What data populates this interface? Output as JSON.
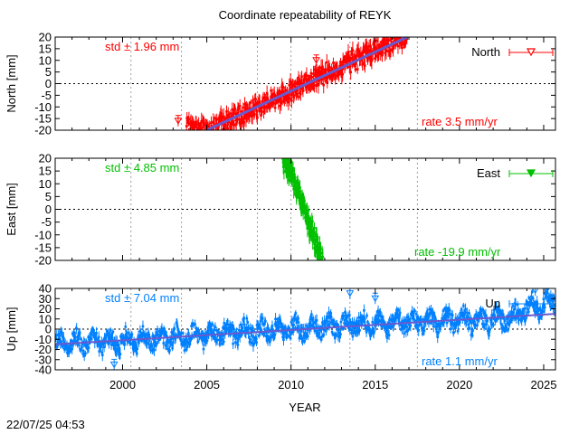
{
  "title": "Coordinate repeatability of REYK",
  "timestamp": "22/07/25 04:53",
  "colors": {
    "north": "#ff0000",
    "east": "#00c000",
    "up": "#0080ff",
    "trend": "#6a5acd",
    "grid": "#888888"
  },
  "chart_data": [
    {
      "type": "scatter",
      "component": "North",
      "ylabel": "North [mm]",
      "xlabel": "",
      "xlim": [
        1996,
        2025.7
      ],
      "ylim": [
        -20,
        20
      ],
      "yticks": [
        -20,
        -15,
        -10,
        -5,
        0,
        5,
        10,
        15,
        20
      ],
      "xticks": [
        2000,
        2005,
        2010,
        2015,
        2020,
        2025
      ],
      "xgrid_lines": [
        2000.5,
        2003.5,
        2008,
        2010,
        2013.5,
        2017.5
      ],
      "legend": "North",
      "legend_position": "top-right",
      "std_label": "std ± 1.96 mm",
      "rate_label": "rate  3.5 mm/yr",
      "data_start": 2003.8,
      "data_end": 2016.9,
      "series": [
        {
          "name": "North",
          "x": [
            2003.8,
            2005,
            2007,
            2009,
            2011,
            2013,
            2015,
            2016.9
          ],
          "y": [
            -19,
            -20,
            -13.5,
            -6.5,
            0.5,
            7.5,
            14.5,
            20
          ]
        }
      ],
      "outliers": [
        [
          2003.3,
          -16
        ],
        [
          2011.5,
          10
        ],
        [
          2016.1,
          17
        ]
      ],
      "trend": {
        "x": [
          2005,
          2016.9
        ],
        "y": [
          -20,
          20
        ]
      }
    },
    {
      "type": "scatter",
      "component": "East",
      "ylabel": "East [mm]",
      "xlabel": "",
      "xlim": [
        1996,
        2025.7
      ],
      "ylim": [
        -20,
        20
      ],
      "yticks": [
        -20,
        -15,
        -10,
        -5,
        0,
        5,
        10,
        15,
        20
      ],
      "xticks": [
        2000,
        2005,
        2010,
        2015,
        2020,
        2025
      ],
      "xgrid_lines": [
        2000.5,
        2003.5,
        2008,
        2010,
        2013.5,
        2017.5
      ],
      "legend": "East",
      "legend_position": "top-right",
      "std_label": "std ± 4.85 mm",
      "rate_label": "rate -19.9 mm/yr",
      "data_start": 2009.5,
      "data_end": 2011.9,
      "series": [
        {
          "name": "East",
          "x": [
            2009.5,
            2010,
            2010.5,
            2011,
            2011.5,
            2011.9
          ],
          "y": [
            20,
            14,
            6,
            -4,
            -13,
            -20
          ]
        }
      ],
      "outliers": [],
      "trend": null
    },
    {
      "type": "scatter",
      "component": "Up",
      "ylabel": "Up [mm]",
      "xlabel": "YEAR",
      "xlim": [
        1996,
        2025.7
      ],
      "ylim": [
        -40,
        40
      ],
      "yticks": [
        -40,
        -30,
        -20,
        -10,
        0,
        10,
        20,
        30,
        40
      ],
      "xticks": [
        2000,
        2005,
        2010,
        2015,
        2020,
        2025
      ],
      "xgrid_lines": [
        2000.5,
        2003.5,
        2008,
        2010,
        2013.5,
        2017.5
      ],
      "legend": "Up",
      "legend_position": "top-right",
      "std_label": "std ± 7.04 mm",
      "rate_label": "rate  1.1 mm/yr",
      "data_start": 1996,
      "data_end": 2025.7,
      "series": [
        {
          "name": "Up",
          "x": [
            1996,
            2000,
            2005,
            2010,
            2015,
            2019,
            2023,
            2024,
            2025.7
          ],
          "y": [
            -15,
            -12,
            -5,
            0,
            6,
            8,
            10,
            20,
            28
          ]
        }
      ],
      "outliers": [
        [
          2013.5,
          35
        ],
        [
          2015,
          30
        ],
        [
          2024.5,
          38
        ],
        [
          1999.5,
          -35
        ]
      ],
      "trend": {
        "x": [
          1996,
          2025.7
        ],
        "y": [
          -15,
          15
        ]
      }
    }
  ]
}
